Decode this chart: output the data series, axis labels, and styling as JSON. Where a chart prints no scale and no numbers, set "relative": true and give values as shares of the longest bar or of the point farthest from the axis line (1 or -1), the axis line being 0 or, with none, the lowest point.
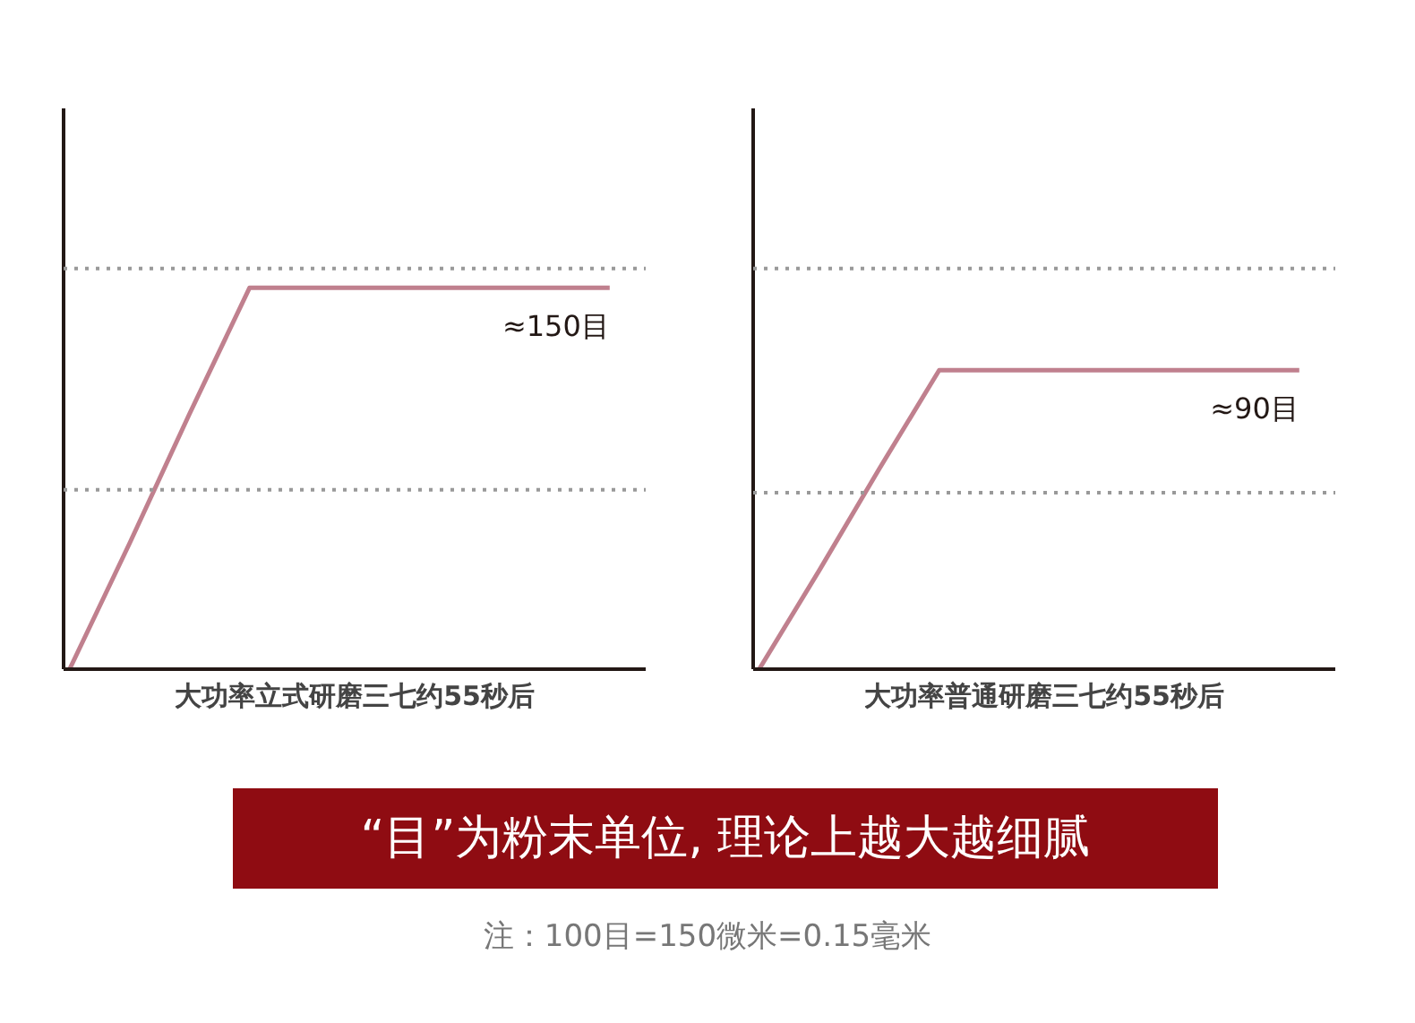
{
  "chart_data": [
    {
      "type": "line",
      "relative": true,
      "xlabel": "大功率立式研磨三七约55秒后",
      "categories": [
        null,
        null,
        null,
        null,
        null,
        null,
        null,
        null,
        null,
        null
      ],
      "marker": "none",
      "line_style": "solid",
      "series": [
        {
          "color": "#c0808e",
          "values": [
            0,
            0.33,
            0.67,
            1,
            1,
            1,
            1,
            1,
            1,
            1
          ]
        }
      ],
      "ref_lines": [
        {
          "axis": "y",
          "value": 1.05,
          "color": "#999999",
          "line_style": "dotted"
        },
        {
          "axis": "y",
          "value": 0.47,
          "color": "#999999",
          "line_style": "dotted"
        }
      ],
      "annotations": [
        "≈150目",
        "“目”为粉末单位, 理论上越大越细腻",
        "注：100目=150微米=0.15毫米"
      ]
    },
    {
      "type": "line",
      "relative": true,
      "xlabel": "大功率普通研磨三七约55秒后",
      "categories": [
        null,
        null,
        null,
        null,
        null,
        null,
        null,
        null,
        null,
        null
      ],
      "marker": "none",
      "line_style": "solid",
      "series": [
        {
          "color": "#c0808e",
          "values": [
            0,
            0.33,
            0.67,
            1,
            1,
            1,
            1,
            1,
            1,
            1
          ]
        }
      ],
      "ref_lines": [
        {
          "axis": "y",
          "value": 1.34,
          "color": "#999999",
          "line_style": "dotted"
        },
        {
          "axis": "y",
          "value": 0.59,
          "color": "#999999",
          "line_style": "dotted"
        }
      ],
      "annotations": [
        "≈90目"
      ]
    }
  ]
}
